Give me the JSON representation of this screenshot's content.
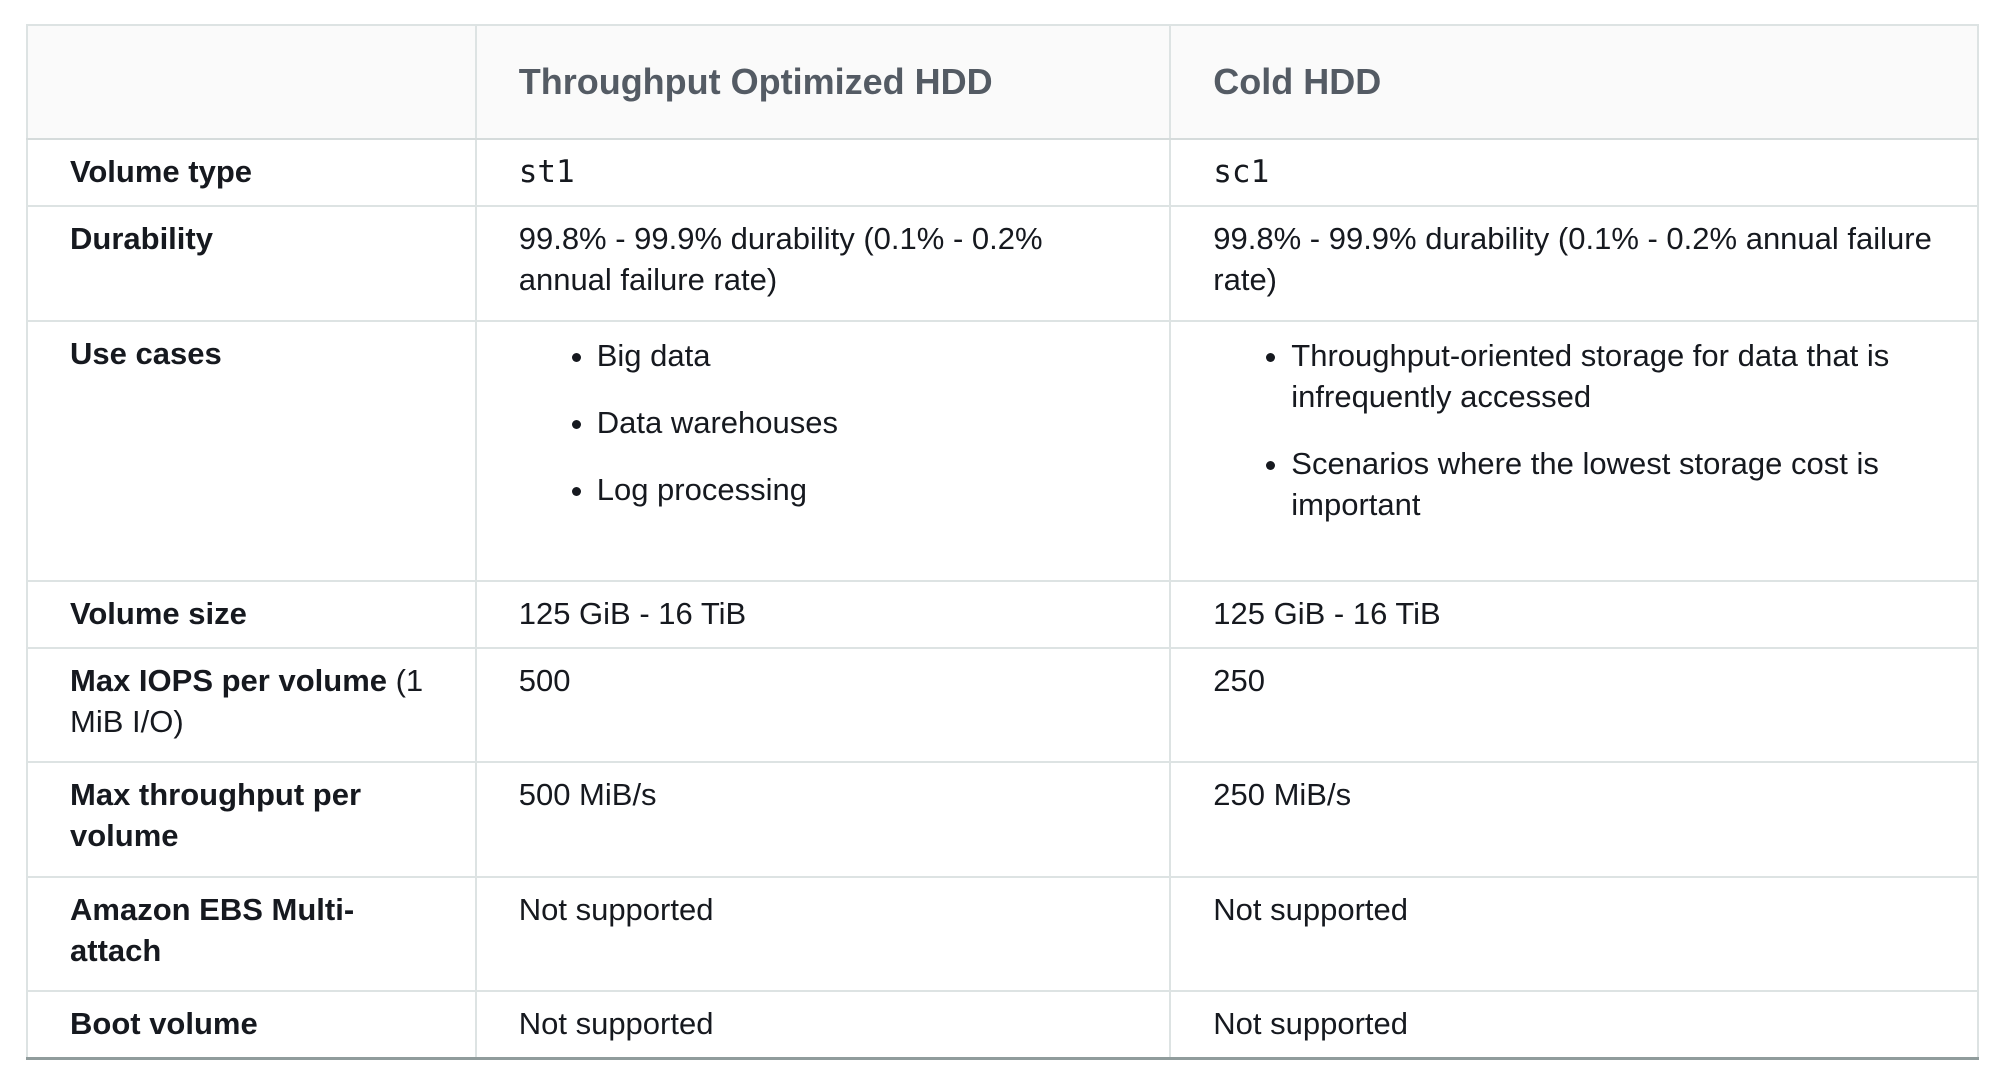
{
  "table": {
    "header": {
      "col1": "",
      "col2": "Throughput Optimized HDD",
      "col3": "Cold HDD"
    },
    "rows": [
      {
        "label": "Volume type",
        "col2": "st1",
        "col3": "sc1"
      },
      {
        "label": "Durability",
        "col2": "99.8% - 99.9% durability (0.1% - 0.2% annual failure rate)",
        "col3": "99.8% - 99.9% durability (0.1% - 0.2% annual failure rate)"
      },
      {
        "label": "Use cases",
        "col2_items": [
          "Big data",
          "Data warehouses",
          "Log processing"
        ],
        "col3_items": [
          "Throughput-oriented storage for data that is infrequently accessed",
          "Scenarios where the lowest storage cost is important"
        ]
      },
      {
        "label": "Volume size",
        "col2": "125 GiB - 16 TiB",
        "col3": "125 GiB - 16 TiB"
      },
      {
        "label": "Max IOPS per volume",
        "label_suffix": " (1 MiB I/O)",
        "col2": "500",
        "col3": "250"
      },
      {
        "label": "Max throughput per volume",
        "col2": "500 MiB/s",
        "col3": "250 MiB/s"
      },
      {
        "label": "Amazon EBS Multi-attach",
        "col2": "Not supported",
        "col3": "Not supported"
      },
      {
        "label": "Boot volume",
        "col2": "Not supported",
        "col3": "Not supported"
      }
    ],
    "colors": {
      "header_bg": "#fafafa",
      "header_text": "#545b64",
      "body_text": "#16191f",
      "outer_border": "#d5dbdb",
      "inner_border": "#dde3e3",
      "bottom_border": "#909c9c",
      "page_bg": "#ffffff"
    }
  }
}
